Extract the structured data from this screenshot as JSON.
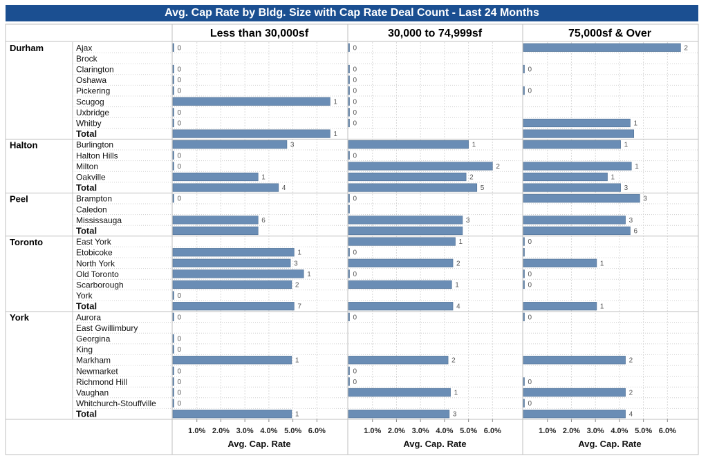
{
  "chart_data": {
    "type": "bar",
    "title": "Avg. Cap Rate by Bldg. Size with Cap Rate Deal Count - Last 24 Months",
    "xlabel": "Avg. Cap. Rate",
    "xlim": [
      0,
      0.072
    ],
    "ticks": [
      "1.0%",
      "2.0%",
      "3.0%",
      "4.0%",
      "5.0%",
      "6.0%"
    ],
    "tick_values": [
      0.01,
      0.02,
      0.03,
      0.04,
      0.05,
      0.06
    ],
    "grid": true,
    "panels": [
      "Less than 30,000sf",
      "30,000 to 74,999sf",
      "75,000sf & Over"
    ],
    "bar_color": "#6a8db5",
    "groups": [
      {
        "region": "Durham",
        "rows": [
          {
            "label": "Ajax",
            "values": [
              [
                0,
                "0"
              ],
              [
                0,
                "0"
              ],
              [
                0.0655,
                "2"
              ]
            ]
          },
          {
            "label": "Brock",
            "values": [
              [
                null,
                ""
              ],
              [
                null,
                ""
              ],
              [
                null,
                ""
              ]
            ]
          },
          {
            "label": "Clarington",
            "values": [
              [
                0,
                "0"
              ],
              [
                0,
                "0"
              ],
              [
                0,
                "0"
              ]
            ]
          },
          {
            "label": "Oshawa",
            "values": [
              [
                0,
                "0"
              ],
              [
                0,
                "0"
              ],
              [
                null,
                ""
              ]
            ]
          },
          {
            "label": "Pickering",
            "values": [
              [
                0,
                "0"
              ],
              [
                0,
                "0"
              ],
              [
                0,
                "0"
              ]
            ]
          },
          {
            "label": "Scugog",
            "values": [
              [
                0.0655,
                "1"
              ],
              [
                0,
                "0"
              ],
              [
                null,
                ""
              ]
            ]
          },
          {
            "label": "Uxbridge",
            "values": [
              [
                0,
                "0"
              ],
              [
                0,
                "0"
              ],
              [
                null,
                ""
              ]
            ]
          },
          {
            "label": "Whitby",
            "values": [
              [
                0,
                "0"
              ],
              [
                0,
                "0"
              ],
              [
                0.0445,
                "1"
              ]
            ]
          },
          {
            "label": "Total",
            "total": true,
            "values": [
              [
                0.0655,
                "1"
              ],
              [
                null,
                ""
              ],
              [
                0.046,
                ""
              ]
            ]
          }
        ]
      },
      {
        "region": "Halton",
        "rows": [
          {
            "label": "Burlington",
            "values": [
              [
                0.0475,
                "3"
              ],
              [
                0.05,
                "1"
              ],
              [
                0.0405,
                "1"
              ]
            ]
          },
          {
            "label": "Halton Hills",
            "values": [
              [
                0,
                "0"
              ],
              [
                0,
                "0"
              ],
              [
                null,
                ""
              ]
            ]
          },
          {
            "label": "Milton",
            "values": [
              [
                0,
                "0"
              ],
              [
                0.06,
                "2"
              ],
              [
                0.045,
                "1"
              ]
            ]
          },
          {
            "label": "Oakville",
            "values": [
              [
                0.0355,
                "1"
              ],
              [
                0.049,
                "2"
              ],
              [
                0.035,
                "1"
              ]
            ]
          },
          {
            "label": "Total",
            "total": true,
            "values": [
              [
                0.044,
                "4"
              ],
              [
                0.0535,
                "5"
              ],
              [
                0.0405,
                "3"
              ]
            ]
          }
        ]
      },
      {
        "region": "Peel",
        "rows": [
          {
            "label": "Brampton",
            "values": [
              [
                0,
                "0"
              ],
              [
                0,
                "0"
              ],
              [
                0.0485,
                "3"
              ]
            ]
          },
          {
            "label": "Caledon",
            "values": [
              [
                null,
                ""
              ],
              [
                0,
                ""
              ],
              [
                null,
                ""
              ]
            ]
          },
          {
            "label": "Mississauga",
            "values": [
              [
                0.0355,
                "6"
              ],
              [
                0.0475,
                "3"
              ],
              [
                0.0425,
                "3"
              ]
            ]
          },
          {
            "label": "Total",
            "total": true,
            "values": [
              [
                0.0355,
                ""
              ],
              [
                0.0475,
                ""
              ],
              [
                0.0445,
                "6"
              ]
            ]
          }
        ]
      },
      {
        "region": "Toronto",
        "rows": [
          {
            "label": "East York",
            "values": [
              [
                null,
                ""
              ],
              [
                0.0445,
                "1"
              ],
              [
                0,
                "0"
              ]
            ]
          },
          {
            "label": "Etobicoke",
            "values": [
              [
                0.0505,
                "1"
              ],
              [
                0,
                "0"
              ],
              [
                0,
                ""
              ]
            ]
          },
          {
            "label": "North York",
            "values": [
              [
                0.049,
                "3"
              ],
              [
                0.0435,
                "2"
              ],
              [
                0.0305,
                "1"
              ]
            ]
          },
          {
            "label": "Old Toronto",
            "values": [
              [
                0.0545,
                "1"
              ],
              [
                0,
                "0"
              ],
              [
                0,
                "0"
              ]
            ]
          },
          {
            "label": "Scarborough",
            "values": [
              [
                0.0495,
                "2"
              ],
              [
                0.043,
                "1"
              ],
              [
                0,
                "0"
              ]
            ]
          },
          {
            "label": "York",
            "values": [
              [
                0,
                "0"
              ],
              [
                null,
                ""
              ],
              [
                null,
                ""
              ]
            ]
          },
          {
            "label": "Total",
            "total": true,
            "values": [
              [
                0.0505,
                "7"
              ],
              [
                0.0435,
                "4"
              ],
              [
                0.0305,
                "1"
              ]
            ]
          }
        ]
      },
      {
        "region": "York",
        "rows": [
          {
            "label": "Aurora",
            "values": [
              [
                0,
                "0"
              ],
              [
                0,
                "0"
              ],
              [
                0,
                "0"
              ]
            ]
          },
          {
            "label": "East Gwillimbury",
            "values": [
              [
                null,
                ""
              ],
              [
                null,
                ""
              ],
              [
                null,
                ""
              ]
            ]
          },
          {
            "label": "Georgina",
            "values": [
              [
                0,
                "0"
              ],
              [
                null,
                ""
              ],
              [
                null,
                ""
              ]
            ]
          },
          {
            "label": "King",
            "values": [
              [
                0,
                "0"
              ],
              [
                null,
                ""
              ],
              [
                null,
                ""
              ]
            ]
          },
          {
            "label": "Markham",
            "values": [
              [
                0.0495,
                "1"
              ],
              [
                0.0415,
                "2"
              ],
              [
                0.0425,
                "2"
              ]
            ]
          },
          {
            "label": "Newmarket",
            "values": [
              [
                0,
                "0"
              ],
              [
                0,
                "0"
              ],
              [
                null,
                ""
              ]
            ]
          },
          {
            "label": "Richmond Hill",
            "values": [
              [
                0,
                "0"
              ],
              [
                0,
                "0"
              ],
              [
                0,
                "0"
              ]
            ]
          },
          {
            "label": "Vaughan",
            "values": [
              [
                0,
                "0"
              ],
              [
                0.0425,
                "1"
              ],
              [
                0.0425,
                "2"
              ]
            ]
          },
          {
            "label": "Whitchurch-Stouffville",
            "values": [
              [
                0,
                "0"
              ],
              [
                null,
                ""
              ],
              [
                0,
                "0"
              ]
            ]
          },
          {
            "label": "Total",
            "total": true,
            "values": [
              [
                0.0495,
                "1"
              ],
              [
                0.042,
                "3"
              ],
              [
                0.0425,
                "4"
              ]
            ]
          }
        ]
      }
    ]
  }
}
